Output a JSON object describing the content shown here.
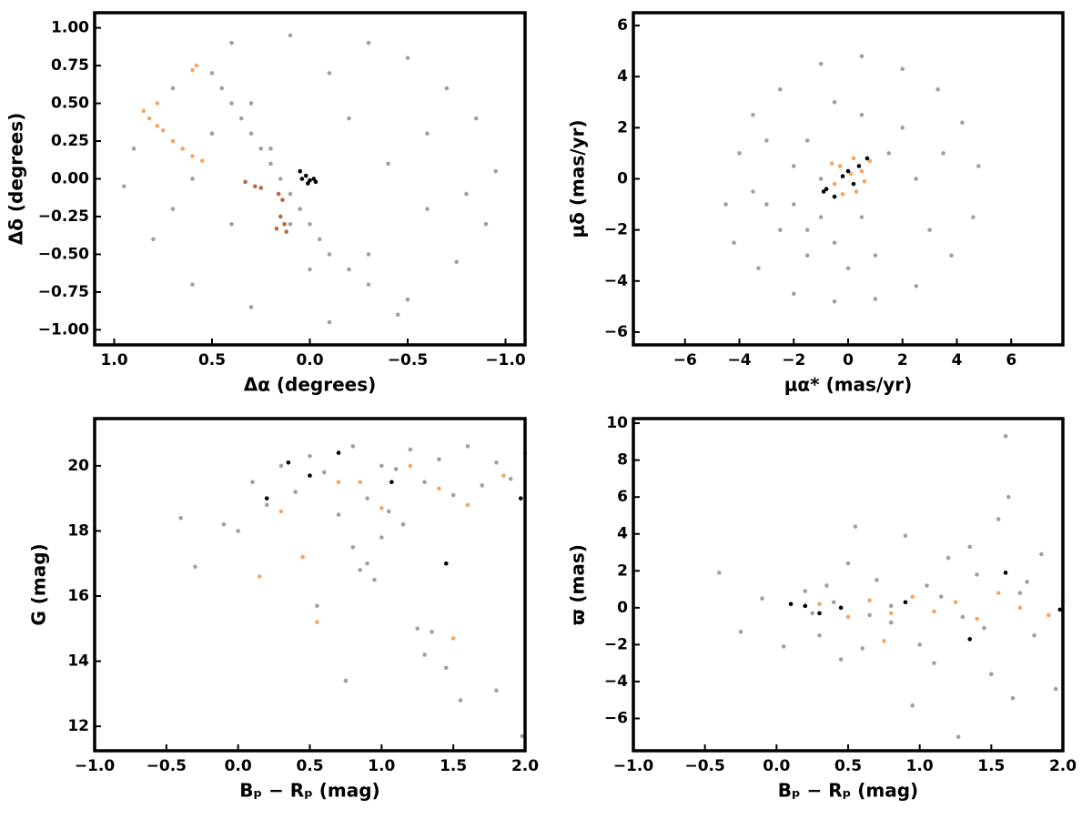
{
  "chart_data": [
    {
      "type": "scatter",
      "xlabel": "Δα (degrees)",
      "ylabel": "Δδ (degrees)",
      "xlim": [
        1.1,
        -1.1
      ],
      "ylim": [
        -1.1,
        1.1
      ],
      "xticks": [
        {
          "value": 1,
          "label": "1.0"
        },
        0.5,
        {
          "value": 0,
          "label": "0.0"
        },
        {
          "value": -0.5,
          "label": "−0.5"
        },
        {
          "value": -1,
          "label": "−1.0"
        }
      ],
      "yticks": [
        {
          "value": -1,
          "label": "−1.00"
        },
        {
          "value": -0.75,
          "label": "−0.75"
        },
        {
          "value": -0.5,
          "label": "−0.50"
        },
        {
          "value": -0.25,
          "label": "−0.25"
        },
        {
          "value": 0,
          "label": "0.00"
        },
        0.25,
        {
          "value": 0.5,
          "label": "0.50"
        },
        0.75,
        {
          "value": 1,
          "label": "1.00"
        }
      ],
      "series": [
        {
          "color": "#a0a0a0",
          "x": [
            0.9,
            0.8,
            0.7,
            0.6,
            0.4,
            0.3,
            0.1,
            -0.1,
            -0.3,
            -0.5,
            -0.7,
            -0.85,
            -0.95,
            -0.9,
            -0.75,
            -0.5,
            0.95,
            0.5,
            0.3,
            0.2,
            0.1,
            -0.2,
            -0.4,
            -0.6,
            -0.3,
            0.4,
            0.6,
            0.7,
            -0.1,
            0.0,
            -0.6,
            -0.8,
            0.5,
            0.45,
            0.4,
            0.35,
            0.3,
            0.25,
            0.2,
            0.15,
            0.1,
            0.05,
            0.0,
            -0.05,
            -0.1,
            -0.2,
            -0.3,
            -0.45
          ],
          "y": [
            0.2,
            -0.4,
            0.6,
            -0.7,
            0.9,
            -0.85,
            0.95,
            -0.95,
            0.9,
            0.8,
            0.6,
            0.4,
            0.05,
            -0.3,
            -0.55,
            -0.8,
            -0.05,
            0.3,
            0.5,
            0.2,
            -0.3,
            0.4,
            0.1,
            -0.2,
            -0.5,
            -0.3,
            0.0,
            -0.2,
            0.7,
            -0.6,
            0.3,
            -0.1,
            0.7,
            0.6,
            0.5,
            0.4,
            0.3,
            0.2,
            0.1,
            0.0,
            -0.1,
            -0.2,
            -0.3,
            -0.4,
            -0.5,
            -0.6,
            -0.7,
            -0.9
          ]
        },
        {
          "color": "#f5a662",
          "x": [
            0.58,
            0.6,
            0.85,
            0.82,
            0.78,
            0.75,
            0.7,
            0.65,
            0.6,
            0.55,
            0.78
          ],
          "y": [
            0.75,
            0.72,
            0.45,
            0.4,
            0.35,
            0.32,
            0.25,
            0.2,
            0.15,
            0.12,
            0.5
          ]
        },
        {
          "color": "#b86a3e",
          "x": [
            0.33,
            0.28,
            0.25,
            0.16,
            0.14,
            0.15,
            0.13,
            0.17,
            0.12
          ],
          "y": [
            -0.02,
            -0.05,
            -0.06,
            -0.1,
            -0.14,
            -0.25,
            -0.3,
            -0.33,
            -0.35
          ]
        },
        {
          "color": "#000000",
          "x": [
            0.05,
            0.02,
            0.0,
            -0.02,
            -0.03,
            0.01,
            0.04
          ],
          "y": [
            0.05,
            0.02,
            -0.01,
            0.0,
            -0.02,
            -0.03,
            0.0
          ]
        }
      ]
    },
    {
      "type": "scatter",
      "xlabel": "μα* (mas/yr)",
      "ylabel": "μδ (mas/yr)",
      "xlim": [
        -7.9,
        7.9
      ],
      "ylim": [
        -6.5,
        6.5
      ],
      "xticks": [
        {
          "value": -6,
          "label": "−6"
        },
        {
          "value": -4,
          "label": "−4"
        },
        {
          "value": -2,
          "label": "−2"
        },
        0,
        2,
        4,
        6
      ],
      "yticks": [
        {
          "value": -6,
          "label": "−6"
        },
        {
          "value": -4,
          "label": "−4"
        },
        {
          "value": -2,
          "label": "−2"
        },
        0,
        2,
        4,
        6
      ],
      "series": [
        {
          "color": "#a0a0a0",
          "x": [
            -4.5,
            -4,
            -3.5,
            -2.5,
            -1,
            0.5,
            2,
            3.3,
            4.2,
            4.8,
            4.6,
            3.8,
            2.5,
            1,
            -0.5,
            -2,
            -3.3,
            -4.2,
            -2,
            -1.5,
            -1,
            -2.5,
            -1,
            -2,
            -3,
            -1.5,
            -0.5,
            0.5,
            1,
            1.5,
            2.5,
            3,
            2,
            0.5,
            -0.5,
            -3,
            -1.5,
            0,
            3.5,
            -3.5
          ],
          "y": [
            -1,
            1,
            2.5,
            3.5,
            4.5,
            4.8,
            4.3,
            3.5,
            2.2,
            0.5,
            -1.5,
            -3,
            -4.2,
            -4.7,
            -4.8,
            -4.5,
            -3.5,
            -2.5,
            -1,
            -2,
            -1.5,
            -2,
            0,
            0.5,
            -1,
            -3,
            -2.5,
            -1.5,
            -3,
            1,
            0,
            -2,
            2,
            2.5,
            3,
            1.5,
            1.5,
            -3.5,
            1,
            -0.5
          ]
        },
        {
          "color": "#f5a662",
          "x": [
            0.2,
            -0.3,
            0.5,
            -0.5,
            0.3,
            0.8,
            -0.2,
            0.6,
            0.1,
            -0.6
          ],
          "y": [
            0.8,
            0.5,
            0.3,
            -0.2,
            -0.5,
            0.7,
            -0.6,
            -0.1,
            0.2,
            0.6
          ]
        },
        {
          "color": "#000000",
          "x": [
            -0.8,
            -0.5,
            0,
            0.2,
            -0.2,
            0.4,
            0.7,
            -0.9
          ],
          "y": [
            -0.4,
            -0.7,
            0.3,
            -0.2,
            0.1,
            0.5,
            0.8,
            -0.5
          ]
        }
      ]
    },
    {
      "type": "scatter",
      "xlabel": "Bₚ − Rₚ (mag)",
      "ylabel": "G (mag)",
      "xlim": [
        -1,
        2
      ],
      "ylim": [
        11.25,
        21.45
      ],
      "xticks": [
        {
          "value": -1,
          "label": "−1.0"
        },
        {
          "value": -0.5,
          "label": "−0.5"
        },
        {
          "value": 0,
          "label": "0.0"
        },
        0.5,
        {
          "value": 1,
          "label": "1.0"
        },
        1.5,
        {
          "value": 2,
          "label": "2.0"
        }
      ],
      "yticks": [
        12,
        14,
        16,
        18,
        20
      ],
      "series": [
        {
          "color": "#a0a0a0",
          "x": [
            -0.4,
            -0.3,
            -0.1,
            0.1,
            0.2,
            0.3,
            0.4,
            0.5,
            0.6,
            0.7,
            0.8,
            0.85,
            0.9,
            0.95,
            1.0,
            1.05,
            1.1,
            1.2,
            1.3,
            1.4,
            1.5,
            1.6,
            1.7,
            1.8,
            1.9,
            2.0,
            0.9,
            1.0,
            0.8,
            1.15,
            1.25,
            1.3,
            1.45,
            1.55,
            0.75,
            1.8,
            1.98,
            0.55,
            1.35,
            0.0
          ],
          "y": [
            18.4,
            16.9,
            18.2,
            19.5,
            18.8,
            20,
            19.2,
            20.3,
            19.8,
            18.5,
            17.5,
            16.8,
            17,
            16.5,
            17.8,
            18.6,
            19.9,
            20.5,
            19.5,
            20.2,
            19.1,
            20.6,
            19.4,
            20.1,
            19.6,
            20.4,
            19,
            20,
            20.6,
            18.2,
            15,
            14.2,
            13.8,
            12.8,
            13.4,
            13.1,
            11.7,
            15.7,
            14.9,
            18.0
          ]
        },
        {
          "color": "#f5a662",
          "x": [
            0.15,
            0.3,
            0.45,
            0.55,
            0.7,
            0.85,
            1.0,
            1.2,
            1.4,
            1.6,
            1.85,
            1.5
          ],
          "y": [
            16.6,
            18.6,
            17.2,
            15.2,
            19.5,
            19.5,
            18.7,
            20,
            19.3,
            18.8,
            19.7,
            14.7
          ]
        },
        {
          "color": "#000000",
          "x": [
            0.2,
            0.35,
            0.5,
            0.7,
            1.07,
            1.45,
            1.97
          ],
          "y": [
            19,
            20.1,
            19.7,
            20.4,
            19.5,
            17,
            19
          ]
        }
      ]
    },
    {
      "type": "scatter",
      "xlabel": "Bₚ − Rₚ (mag)",
      "ylabel": "ϖ (mas)",
      "xlim": [
        -1,
        2
      ],
      "ylim": [
        -7.75,
        10.25
      ],
      "xticks": [
        {
          "value": -1,
          "label": "−1.0"
        },
        {
          "value": -0.5,
          "label": "−0.5"
        },
        {
          "value": 0,
          "label": "0.0"
        },
        0.5,
        {
          "value": 1,
          "label": "1.0"
        },
        1.5,
        {
          "value": 2,
          "label": "2.0"
        }
      ],
      "yticks": [
        {
          "value": -6,
          "label": "−6"
        },
        {
          "value": -4,
          "label": "−4"
        },
        {
          "value": -2,
          "label": "−2"
        },
        0,
        2,
        4,
        6,
        8,
        10
      ],
      "series": [
        {
          "color": "#a0a0a0",
          "x": [
            -0.4,
            -0.25,
            -0.1,
            0.05,
            0.2,
            0.3,
            0.4,
            0.5,
            0.6,
            0.7,
            0.8,
            0.9,
            1.0,
            1.05,
            1.1,
            1.2,
            1.3,
            1.4,
            1.5,
            1.55,
            1.6,
            1.62,
            1.65,
            1.7,
            1.8,
            1.85,
            1.95,
            2.0,
            0.95,
            1.27,
            0.45,
            0.8,
            1.15,
            1.45,
            0.65,
            1.75,
            0.25,
            0.35,
            1.35,
            0.55
          ],
          "y": [
            1.9,
            -1.3,
            0.5,
            -2.1,
            0.9,
            -1.5,
            0.3,
            2.4,
            -2.2,
            1.5,
            -0.8,
            3.9,
            -2,
            1.2,
            -3,
            2.7,
            -0.5,
            1.8,
            -3.6,
            4.8,
            9.3,
            6.0,
            -4.9,
            0.8,
            -1.5,
            2.9,
            -4.4,
            0.4,
            -5.3,
            -7,
            -2.8,
            0.1,
            0.6,
            -1.1,
            -0.4,
            1.4,
            -0.3,
            1.2,
            3.3,
            4.4
          ]
        },
        {
          "color": "#f5a662",
          "x": [
            0.3,
            0.5,
            0.65,
            0.8,
            0.95,
            1.1,
            1.25,
            1.4,
            1.55,
            1.7,
            1.9,
            0.75
          ],
          "y": [
            0.2,
            -0.5,
            0.4,
            -0.3,
            0.6,
            -0.2,
            0.3,
            -0.6,
            0.8,
            0,
            -0.4,
            -1.8
          ]
        },
        {
          "color": "#000000",
          "x": [
            0.1,
            0.2,
            0.3,
            0.45,
            0.9,
            1.6,
            1.98,
            1.35
          ],
          "y": [
            0.2,
            0.1,
            -0.3,
            0,
            0.3,
            1.9,
            -0.1,
            -1.7
          ]
        }
      ]
    }
  ]
}
